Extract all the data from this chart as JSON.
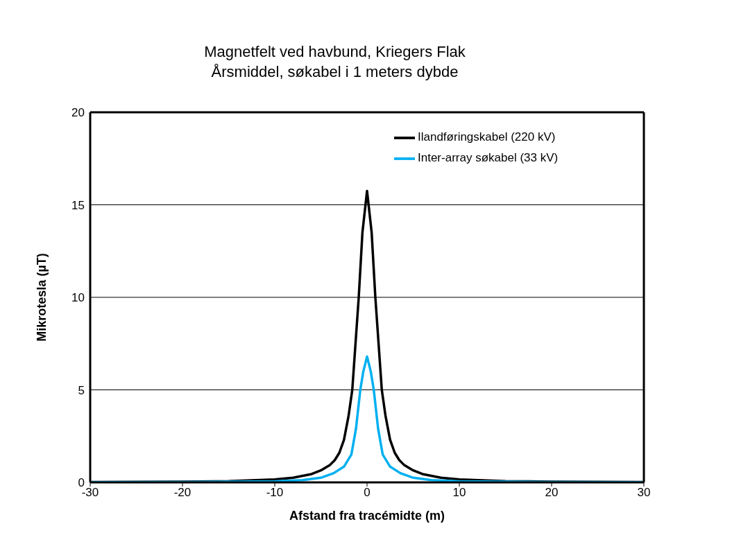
{
  "chart_data": {
    "type": "line",
    "title": "Magnetfelt ved havbund, Kriegers Flak",
    "subtitle": "Årsmiddel, søkabel i 1 meters dybde",
    "xlabel": "Afstand fra tracémidte (m)",
    "ylabel": "Mikrotesla (µT)",
    "xlim": [
      -30,
      30
    ],
    "xticks": [
      -30,
      -20,
      -10,
      0,
      10,
      20,
      30
    ],
    "ylim": [
      0,
      20
    ],
    "yticks": [
      0,
      5,
      10,
      15,
      20
    ],
    "grid": "y",
    "legend": "top right",
    "marker": "none",
    "line_style": "solid",
    "series": [
      {
        "name": "Ilandføringskabel (220 kV)",
        "color": "#000000",
        "x": [
          -30,
          -20,
          -15,
          -10,
          -8,
          -6,
          -5,
          -4,
          -3.5,
          -3,
          -2.5,
          -2,
          -1.6,
          -0.9,
          -0.5,
          0,
          0.5,
          0.9,
          1.6,
          2,
          2.5,
          3,
          3.5,
          4,
          5,
          6,
          8,
          10,
          15,
          20,
          30
        ],
        "values": [
          0.02,
          0.04,
          0.07,
          0.16,
          0.25,
          0.45,
          0.65,
          0.95,
          1.2,
          1.6,
          2.3,
          3.6,
          5,
          10,
          13.5,
          15.75,
          13.5,
          10,
          5,
          3.6,
          2.3,
          1.6,
          1.2,
          0.95,
          0.65,
          0.45,
          0.25,
          0.16,
          0.07,
          0.04,
          0.02
        ]
      },
      {
        "name": "Inter-array søkabel (33 kV)",
        "color": "#00b0f0",
        "x": [
          -30,
          -20,
          -10,
          -7,
          -5,
          -3.6,
          -2.5,
          -1.7,
          -1.2,
          -0.73,
          -0.4,
          0,
          0.4,
          0.73,
          1.2,
          1.7,
          2.5,
          3.6,
          5,
          7,
          10,
          20,
          30
        ],
        "values": [
          0.01,
          0.02,
          0.06,
          0.12,
          0.25,
          0.5,
          0.85,
          1.5,
          2.9,
          5,
          6,
          6.8,
          6,
          5,
          2.9,
          1.5,
          0.85,
          0.5,
          0.25,
          0.12,
          0.06,
          0.02,
          0.01
        ]
      }
    ]
  }
}
